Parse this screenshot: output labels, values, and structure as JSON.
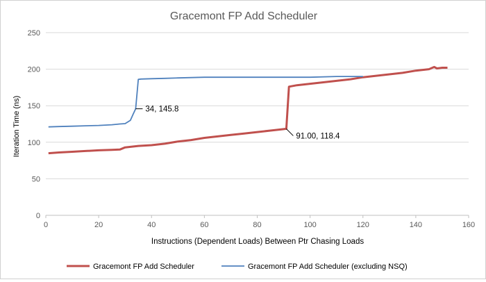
{
  "chart_data": {
    "type": "line",
    "title": "Gracemont FP Add Scheduler",
    "xlabel": "Instructions (Dependent Loads) Between  Ptr Chasing Loads",
    "ylabel": "Iteration Time (ns)",
    "xlim": [
      0,
      160
    ],
    "ylim": [
      0,
      250
    ],
    "xticks": [
      "0",
      "20",
      "40",
      "60",
      "80",
      "100",
      "120",
      "140",
      "160"
    ],
    "yticks": [
      "0",
      "50",
      "100",
      "150",
      "200",
      "250"
    ],
    "grid": "horizontal",
    "legend_position": "bottom",
    "series": [
      {
        "name": "Gracemont FP Add Scheduler",
        "color": "#c0504d",
        "points": [
          [
            1,
            85
          ],
          [
            5,
            86
          ],
          [
            10,
            87
          ],
          [
            15,
            88
          ],
          [
            20,
            89
          ],
          [
            25,
            89.5
          ],
          [
            28,
            90
          ],
          [
            30,
            93
          ],
          [
            35,
            95
          ],
          [
            40,
            96
          ],
          [
            45,
            98
          ],
          [
            50,
            101
          ],
          [
            55,
            103
          ],
          [
            60,
            106
          ],
          [
            65,
            108
          ],
          [
            70,
            110
          ],
          [
            75,
            112
          ],
          [
            80,
            114
          ],
          [
            85,
            116
          ],
          [
            90,
            118
          ],
          [
            91,
            118.4
          ],
          [
            92,
            176
          ],
          [
            95,
            178
          ],
          [
            100,
            180
          ],
          [
            105,
            182
          ],
          [
            110,
            184
          ],
          [
            115,
            186
          ],
          [
            120,
            189
          ],
          [
            125,
            191
          ],
          [
            130,
            193
          ],
          [
            135,
            195
          ],
          [
            140,
            198
          ],
          [
            145,
            200
          ],
          [
            147,
            203
          ],
          [
            148,
            201
          ],
          [
            150,
            202
          ],
          [
            152,
            202
          ]
        ]
      },
      {
        "name": "Gracemont FP Add Scheduler (excluding NSQ)",
        "color": "#4f81bd",
        "points": [
          [
            1,
            121
          ],
          [
            5,
            121.5
          ],
          [
            10,
            122
          ],
          [
            15,
            122.5
          ],
          [
            20,
            123
          ],
          [
            25,
            124
          ],
          [
            28,
            125
          ],
          [
            30,
            125.5
          ],
          [
            32,
            130
          ],
          [
            33,
            138
          ],
          [
            34,
            145.8
          ],
          [
            35,
            186
          ],
          [
            36,
            186.5
          ],
          [
            40,
            187
          ],
          [
            45,
            187.5
          ],
          [
            50,
            188
          ],
          [
            55,
            188.5
          ],
          [
            60,
            189
          ],
          [
            70,
            189
          ],
          [
            80,
            189
          ],
          [
            90,
            189
          ],
          [
            100,
            189
          ],
          [
            110,
            190
          ],
          [
            115,
            190
          ],
          [
            120,
            190
          ]
        ]
      }
    ],
    "annotations": [
      {
        "text": "34, 145.8",
        "x": 34,
        "y": 145.8,
        "series": 1
      },
      {
        "text": "91.00, 118.4",
        "x": 91,
        "y": 118.4,
        "series": 0
      }
    ]
  }
}
